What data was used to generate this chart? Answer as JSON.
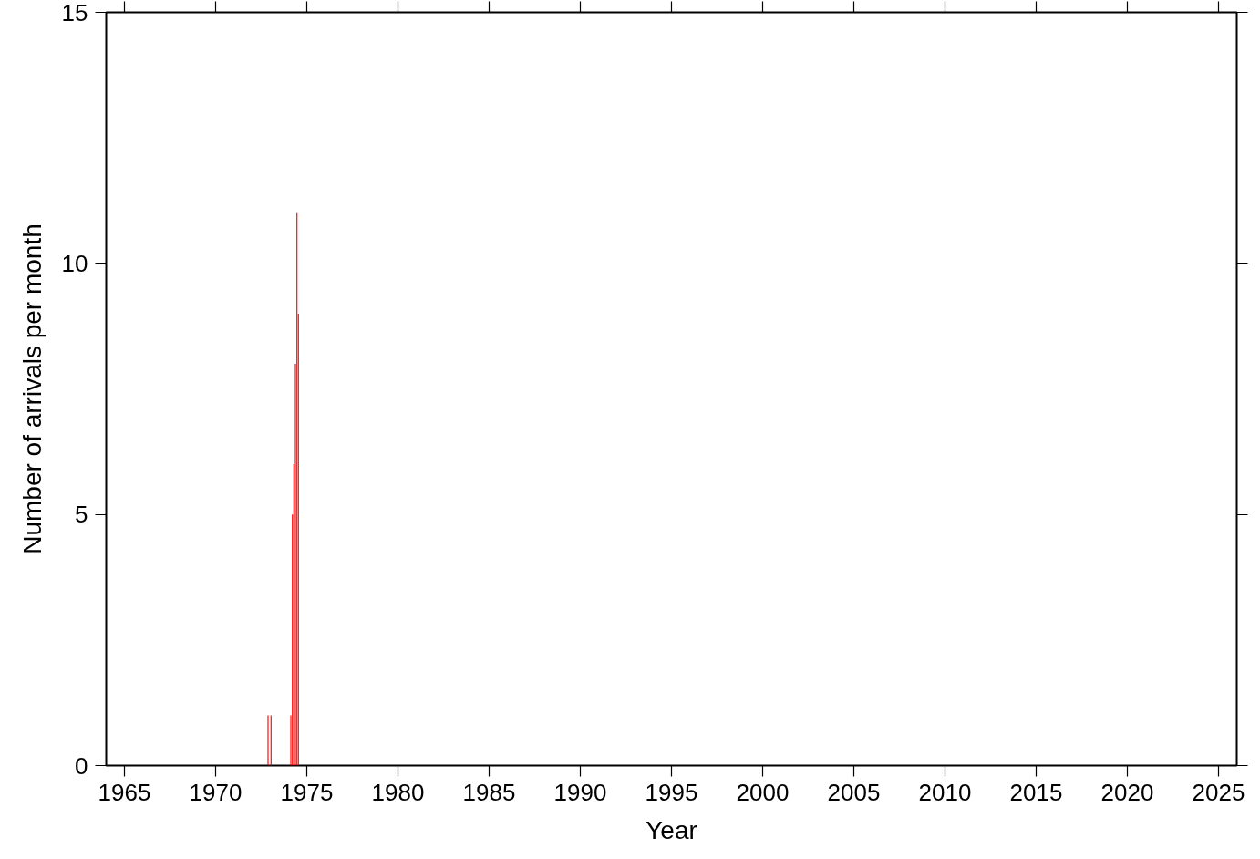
{
  "chart_data": {
    "type": "bar",
    "xlabel": "Year",
    "ylabel": "Number of arrivals per month",
    "x": [
      "1972-11",
      "1973-01",
      "1974-02",
      "1974-03",
      "1974-04",
      "1974-05",
      "1974-06",
      "1974-07"
    ],
    "values": [
      1,
      1,
      1,
      5,
      6,
      8,
      11,
      9
    ],
    "color": "#ff0000",
    "xlim": [
      "1964",
      "2026"
    ],
    "xticks": [
      "1965",
      "1970",
      "1975",
      "1980",
      "1985",
      "1990",
      "1995",
      "2000",
      "2005",
      "2010",
      "2015",
      "2020",
      "2025"
    ],
    "ylim": [
      0,
      15
    ],
    "yticks": [
      0,
      5,
      10,
      15
    ],
    "grid": false
  }
}
